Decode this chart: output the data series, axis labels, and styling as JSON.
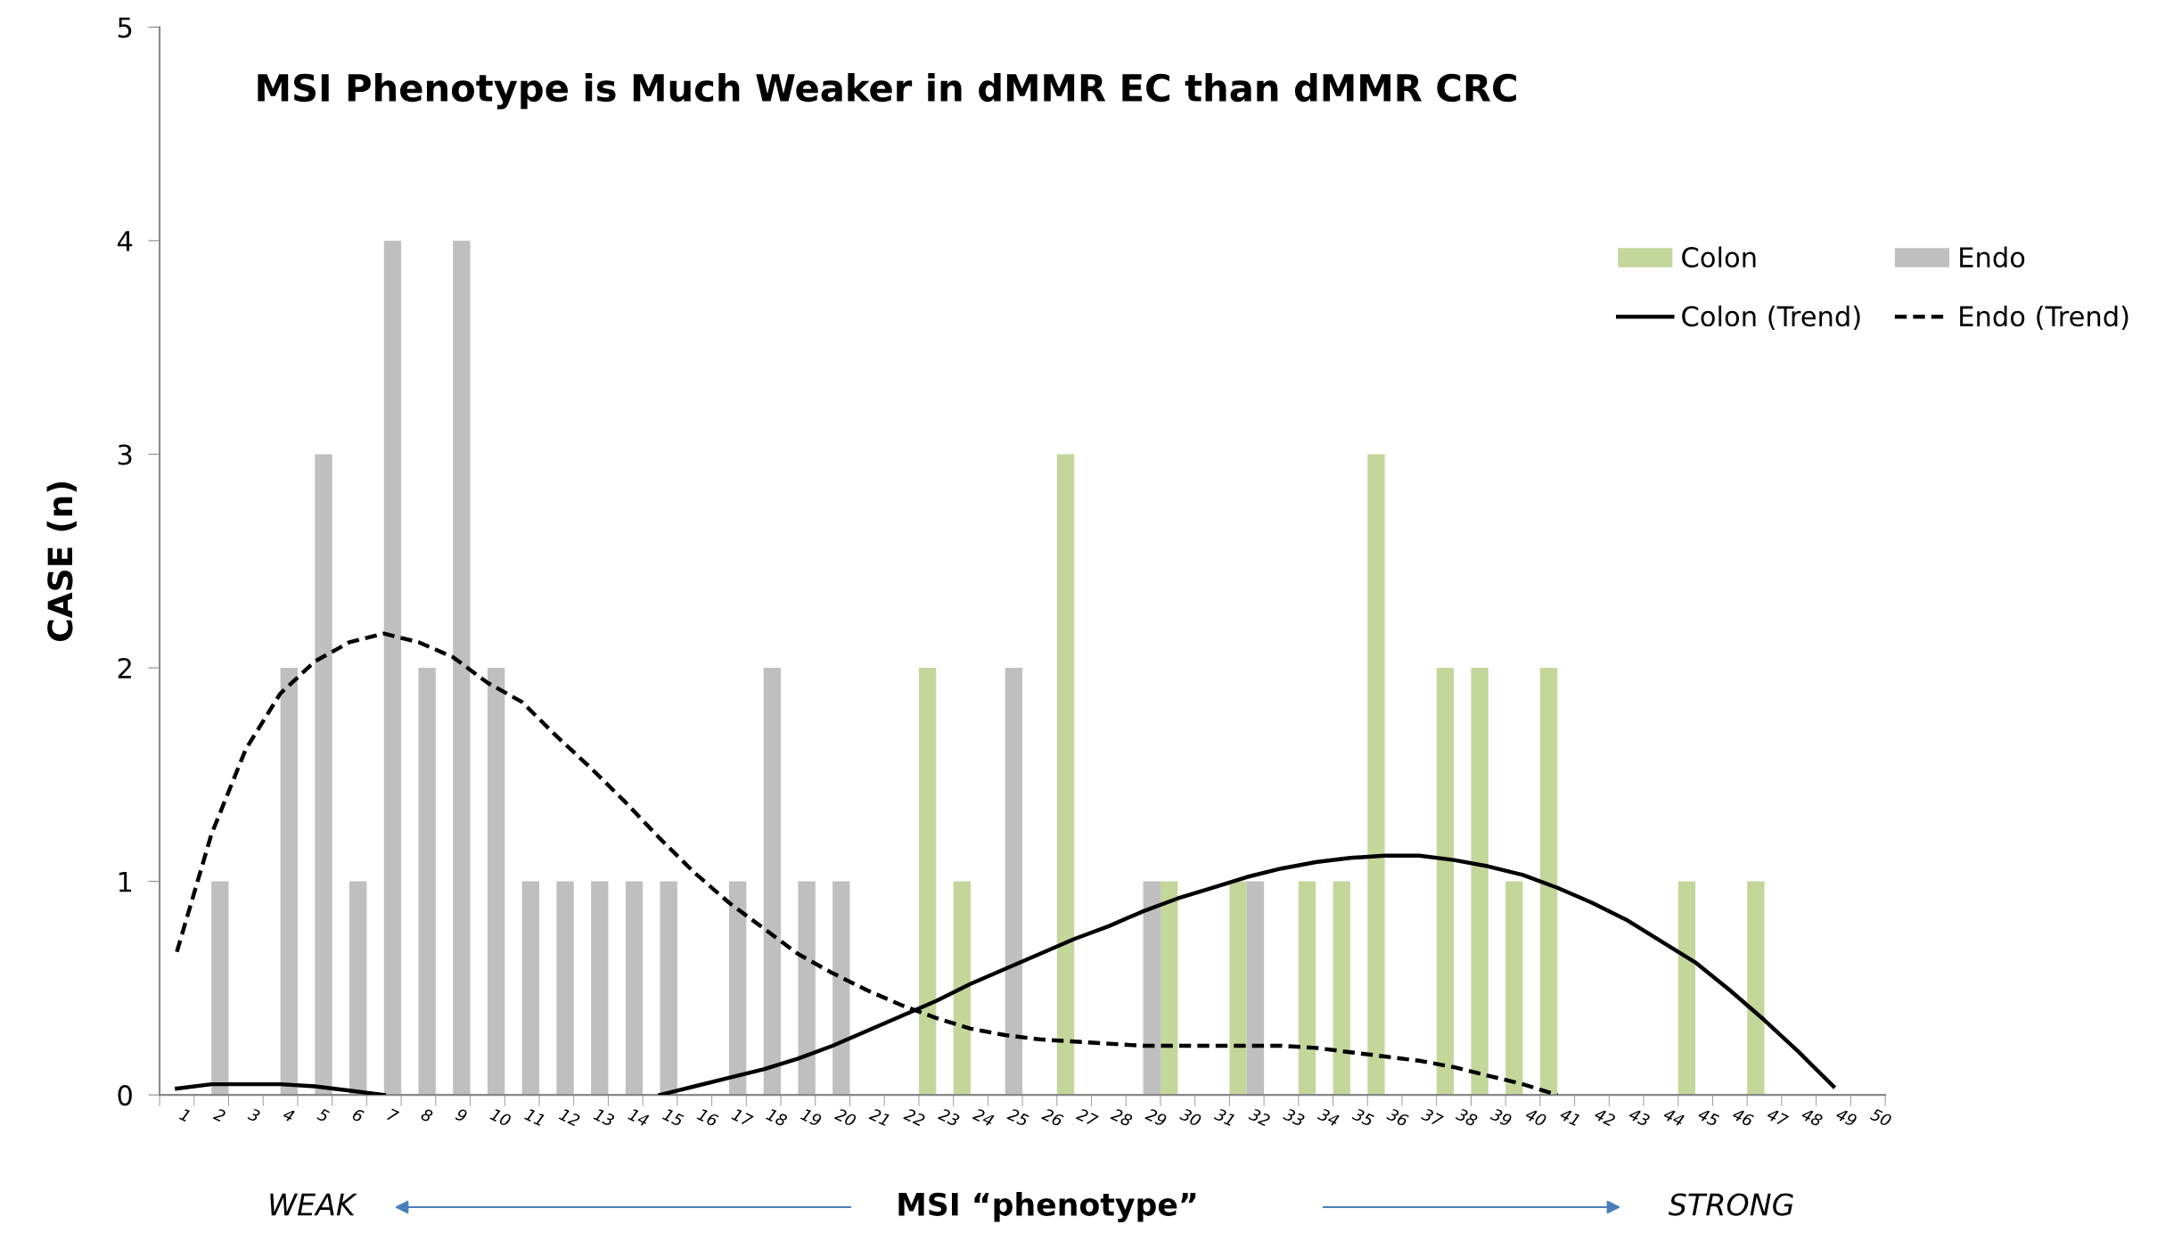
{
  "chart_data": {
    "type": "bar",
    "title": "MSI Phenotype is Much Weaker in dMMR EC than dMMR CRC",
    "xlabel": "MSI “phenotype”",
    "ylabel": "CASE (n)",
    "categories": [
      "1",
      "2",
      "3",
      "4",
      "5",
      "6",
      "7",
      "8",
      "9",
      "10",
      "11",
      "12",
      "13",
      "14",
      "15",
      "16",
      "17",
      "18",
      "19",
      "20",
      "21",
      "22",
      "23",
      "24",
      "25",
      "26",
      "27",
      "28",
      "29",
      "30",
      "31",
      "32",
      "33",
      "34",
      "35",
      "36",
      "37",
      "38",
      "39",
      "40",
      "41",
      "42",
      "43",
      "44",
      "45",
      "46",
      "47",
      "48",
      "49",
      "50"
    ],
    "series": [
      {
        "name": "Colon",
        "color": "#c4d79b",
        "values": [
          0,
          0,
          0,
          0,
          0,
          0,
          0,
          0,
          0,
          0,
          0,
          0,
          0,
          0,
          0,
          0,
          0,
          0,
          0,
          0,
          0,
          0,
          2,
          1,
          0,
          0,
          3,
          0,
          0,
          1,
          0,
          1,
          0,
          1,
          1,
          3,
          0,
          2,
          2,
          1,
          2,
          0,
          0,
          0,
          1,
          0,
          1,
          0,
          0,
          0
        ]
      },
      {
        "name": "Endo",
        "color": "#bfbfbf",
        "values": [
          0,
          1,
          0,
          2,
          3,
          1,
          4,
          2,
          4,
          2,
          1,
          1,
          1,
          1,
          1,
          0,
          1,
          2,
          1,
          1,
          0,
          0,
          0,
          0,
          2,
          0,
          0,
          0,
          1,
          0,
          0,
          1,
          0,
          0,
          0,
          0,
          0,
          0,
          0,
          0,
          0,
          0,
          0,
          0,
          0,
          0,
          0,
          0,
          0,
          0
        ]
      },
      {
        "name": "Colon (Trend)",
        "type": "line",
        "color": "#000000",
        "line_style": "solid",
        "values": [
          0.03,
          0.05,
          0.05,
          0.05,
          0.04,
          0.02,
          0,
          null,
          null,
          null,
          null,
          null,
          null,
          null,
          0,
          0.04,
          0.08,
          0.12,
          0.17,
          0.23,
          0.3,
          0.37,
          0.44,
          0.52,
          0.59,
          0.66,
          0.73,
          0.79,
          0.86,
          0.92,
          0.97,
          1.02,
          1.06,
          1.09,
          1.11,
          1.12,
          1.12,
          1.1,
          1.07,
          1.03,
          0.97,
          0.9,
          0.82,
          0.72,
          0.62,
          0.49,
          0.35,
          0.2,
          0.04,
          null
        ]
      },
      {
        "name": "Endo (Trend)",
        "type": "line",
        "color": "#000000",
        "line_style": "dashed",
        "values": [
          0.67,
          1.22,
          1.62,
          1.88,
          2.03,
          2.12,
          2.16,
          2.12,
          2.05,
          1.93,
          1.84,
          1.68,
          1.53,
          1.37,
          1.2,
          1.04,
          0.9,
          0.78,
          0.66,
          0.57,
          0.49,
          0.42,
          0.36,
          0.31,
          0.28,
          0.26,
          0.25,
          0.24,
          0.23,
          0.23,
          0.23,
          0.23,
          0.23,
          0.22,
          0.2,
          0.18,
          0.16,
          0.13,
          0.09,
          0.05,
          0,
          null,
          null,
          null,
          null,
          null,
          null,
          null,
          null,
          null
        ]
      }
    ],
    "ylim": [
      0,
      5
    ],
    "yticks": [
      0,
      1,
      2,
      3,
      4,
      5
    ],
    "grid": false,
    "legend": "top right",
    "annotations": [
      "WEAK",
      "STRONG"
    ]
  }
}
